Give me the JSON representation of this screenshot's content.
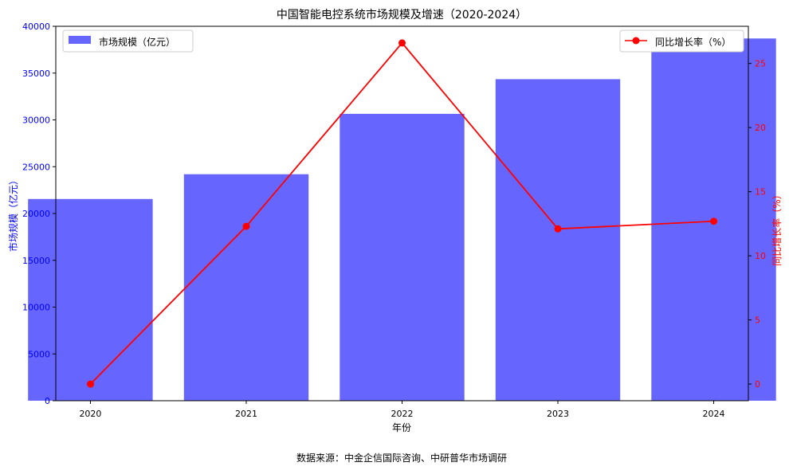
{
  "chart_data": {
    "type": "bar",
    "title": "中国智能电控系统市场规模及增速（2020-2024）",
    "xlabel": "年份",
    "ylabel": "市场规模（亿元）",
    "y2label": "同比增长率（%）",
    "categories": [
      "2020",
      "2021",
      "2022",
      "2023",
      "2024"
    ],
    "series": [
      {
        "name": "市场规模（亿元）",
        "type": "bar",
        "axis": "left",
        "color": "#6666ff",
        "values": [
          21550,
          24200,
          30650,
          34350,
          38700
        ]
      },
      {
        "name": "同比增长率（%）",
        "type": "line",
        "axis": "right",
        "color": "#ff0000",
        "marker": "circle",
        "values": [
          0,
          12.3,
          26.6,
          12.1,
          12.7
        ]
      }
    ],
    "ylim": [
      0,
      40000
    ],
    "y2lim": [
      -1.3,
      27.9
    ],
    "yticks": [
      0,
      5000,
      10000,
      15000,
      20000,
      25000,
      30000,
      35000,
      40000
    ],
    "y2ticks": [
      0,
      5,
      10,
      15,
      20,
      25
    ],
    "left_axis_color": "#0000ff",
    "right_axis_color": "#ff0000",
    "grid": false,
    "legend_left_position": "top-left",
    "legend_right_position": "top-right",
    "source_note": "数据来源：中金企信国际咨询、中研普华市场调研"
  }
}
